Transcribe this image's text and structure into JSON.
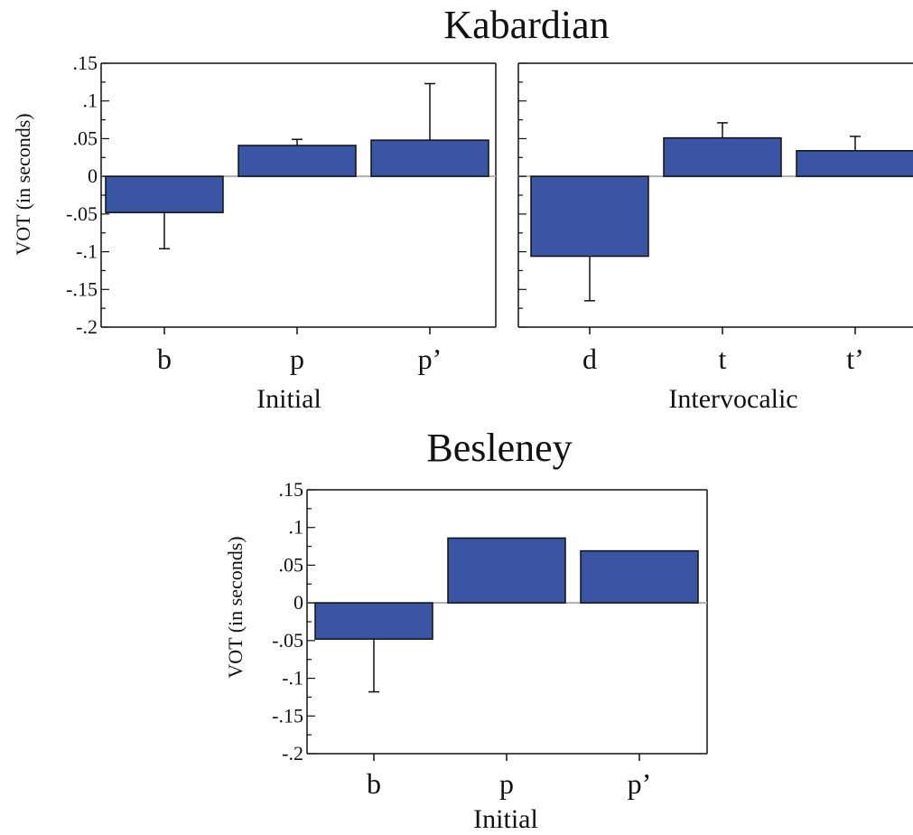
{
  "chart_data": [
    {
      "type": "bar",
      "title": "Kabardian",
      "ylabel": "VOT (in seconds)",
      "xlabel": "Initial",
      "ylim": [
        -0.2,
        0.15
      ],
      "yticks": [
        ".15",
        ".1",
        ".05",
        "0",
        "-.05",
        "-.1",
        "-.15",
        "-.2"
      ],
      "categories": [
        "b",
        "p",
        "p’"
      ],
      "values": [
        -0.048,
        0.041,
        0.048
      ],
      "error": [
        0.048,
        0.008,
        0.075
      ]
    },
    {
      "type": "bar",
      "title": "",
      "ylabel": "",
      "xlabel": "Intervocalic",
      "ylim": [
        -0.2,
        0.15
      ],
      "yticks": [],
      "categories": [
        "d",
        "t",
        "t’"
      ],
      "values": [
        -0.106,
        0.051,
        0.034
      ],
      "error": [
        0.059,
        0.02,
        0.019
      ]
    },
    {
      "type": "bar",
      "title": "Besleney",
      "ylabel": "VOT (in seconds)",
      "xlabel": "Initial",
      "ylim": [
        -0.2,
        0.15
      ],
      "yticks": [
        ".15",
        ".1",
        ".05",
        "0",
        "-.05",
        "-.1",
        "-.15",
        "-.2"
      ],
      "categories": [
        "b",
        "p",
        "p’"
      ],
      "values": [
        -0.048,
        0.086,
        0.069
      ],
      "error": [
        0.07,
        0,
        0
      ]
    }
  ],
  "colors": {
    "bar": "#3a55a4",
    "axis": "#111111",
    "zero_line": "#b0b0b0"
  }
}
